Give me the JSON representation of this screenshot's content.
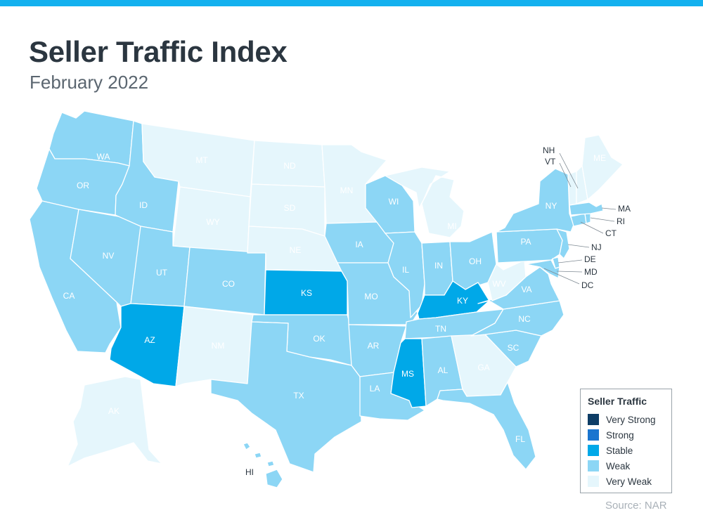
{
  "header": {
    "title": "Seller Traffic Index",
    "subtitle": "February 2022"
  },
  "colors": {
    "accent_bar": "#14b1ef",
    "very_strong": "#0d3d66",
    "strong": "#1a75cf",
    "stable": "#00a8e8",
    "weak": "#8cd6f5",
    "very_weak": "#e5f6fc"
  },
  "legend": {
    "title": "Seller Traffic",
    "items": [
      {
        "label": "Very Strong",
        "level": "very_strong"
      },
      {
        "label": "Strong",
        "level": "strong"
      },
      {
        "label": "Stable",
        "level": "stable"
      },
      {
        "label": "Weak",
        "level": "weak"
      },
      {
        "label": "Very Weak",
        "level": "very_weak"
      }
    ]
  },
  "states": {
    "WA": "weak",
    "OR": "weak",
    "CA": "weak",
    "NV": "weak",
    "ID": "weak",
    "MT": "very_weak",
    "WY": "very_weak",
    "UT": "weak",
    "AZ": "stable",
    "CO": "weak",
    "NM": "very_weak",
    "ND": "very_weak",
    "SD": "very_weak",
    "NE": "very_weak",
    "KS": "stable",
    "OK": "weak",
    "TX": "weak",
    "MN": "very_weak",
    "IA": "weak",
    "MO": "weak",
    "AR": "weak",
    "LA": "weak",
    "WI": "weak",
    "IL": "weak",
    "MI": "very_weak",
    "IN": "weak",
    "OH": "weak",
    "KY": "stable",
    "TN": "weak",
    "MS": "stable",
    "AL": "weak",
    "GA": "very_weak",
    "FL": "weak",
    "SC": "weak",
    "NC": "weak",
    "VA": "weak",
    "WV": "very_weak",
    "PA": "weak",
    "NY": "weak",
    "ME": "very_weak",
    "NH": "very_weak",
    "VT": "very_weak",
    "MA": "weak",
    "RI": "weak",
    "CT": "weak",
    "NJ": "weak",
    "DE": "weak",
    "MD": "weak",
    "AK": "very_weak",
    "HI": "weak"
  },
  "callouts": [
    "NH",
    "VT",
    "MA",
    "RI",
    "CT",
    "NJ",
    "DE",
    "MD",
    "DC",
    "HI"
  ],
  "footer": {
    "source": "Source: NAR"
  }
}
